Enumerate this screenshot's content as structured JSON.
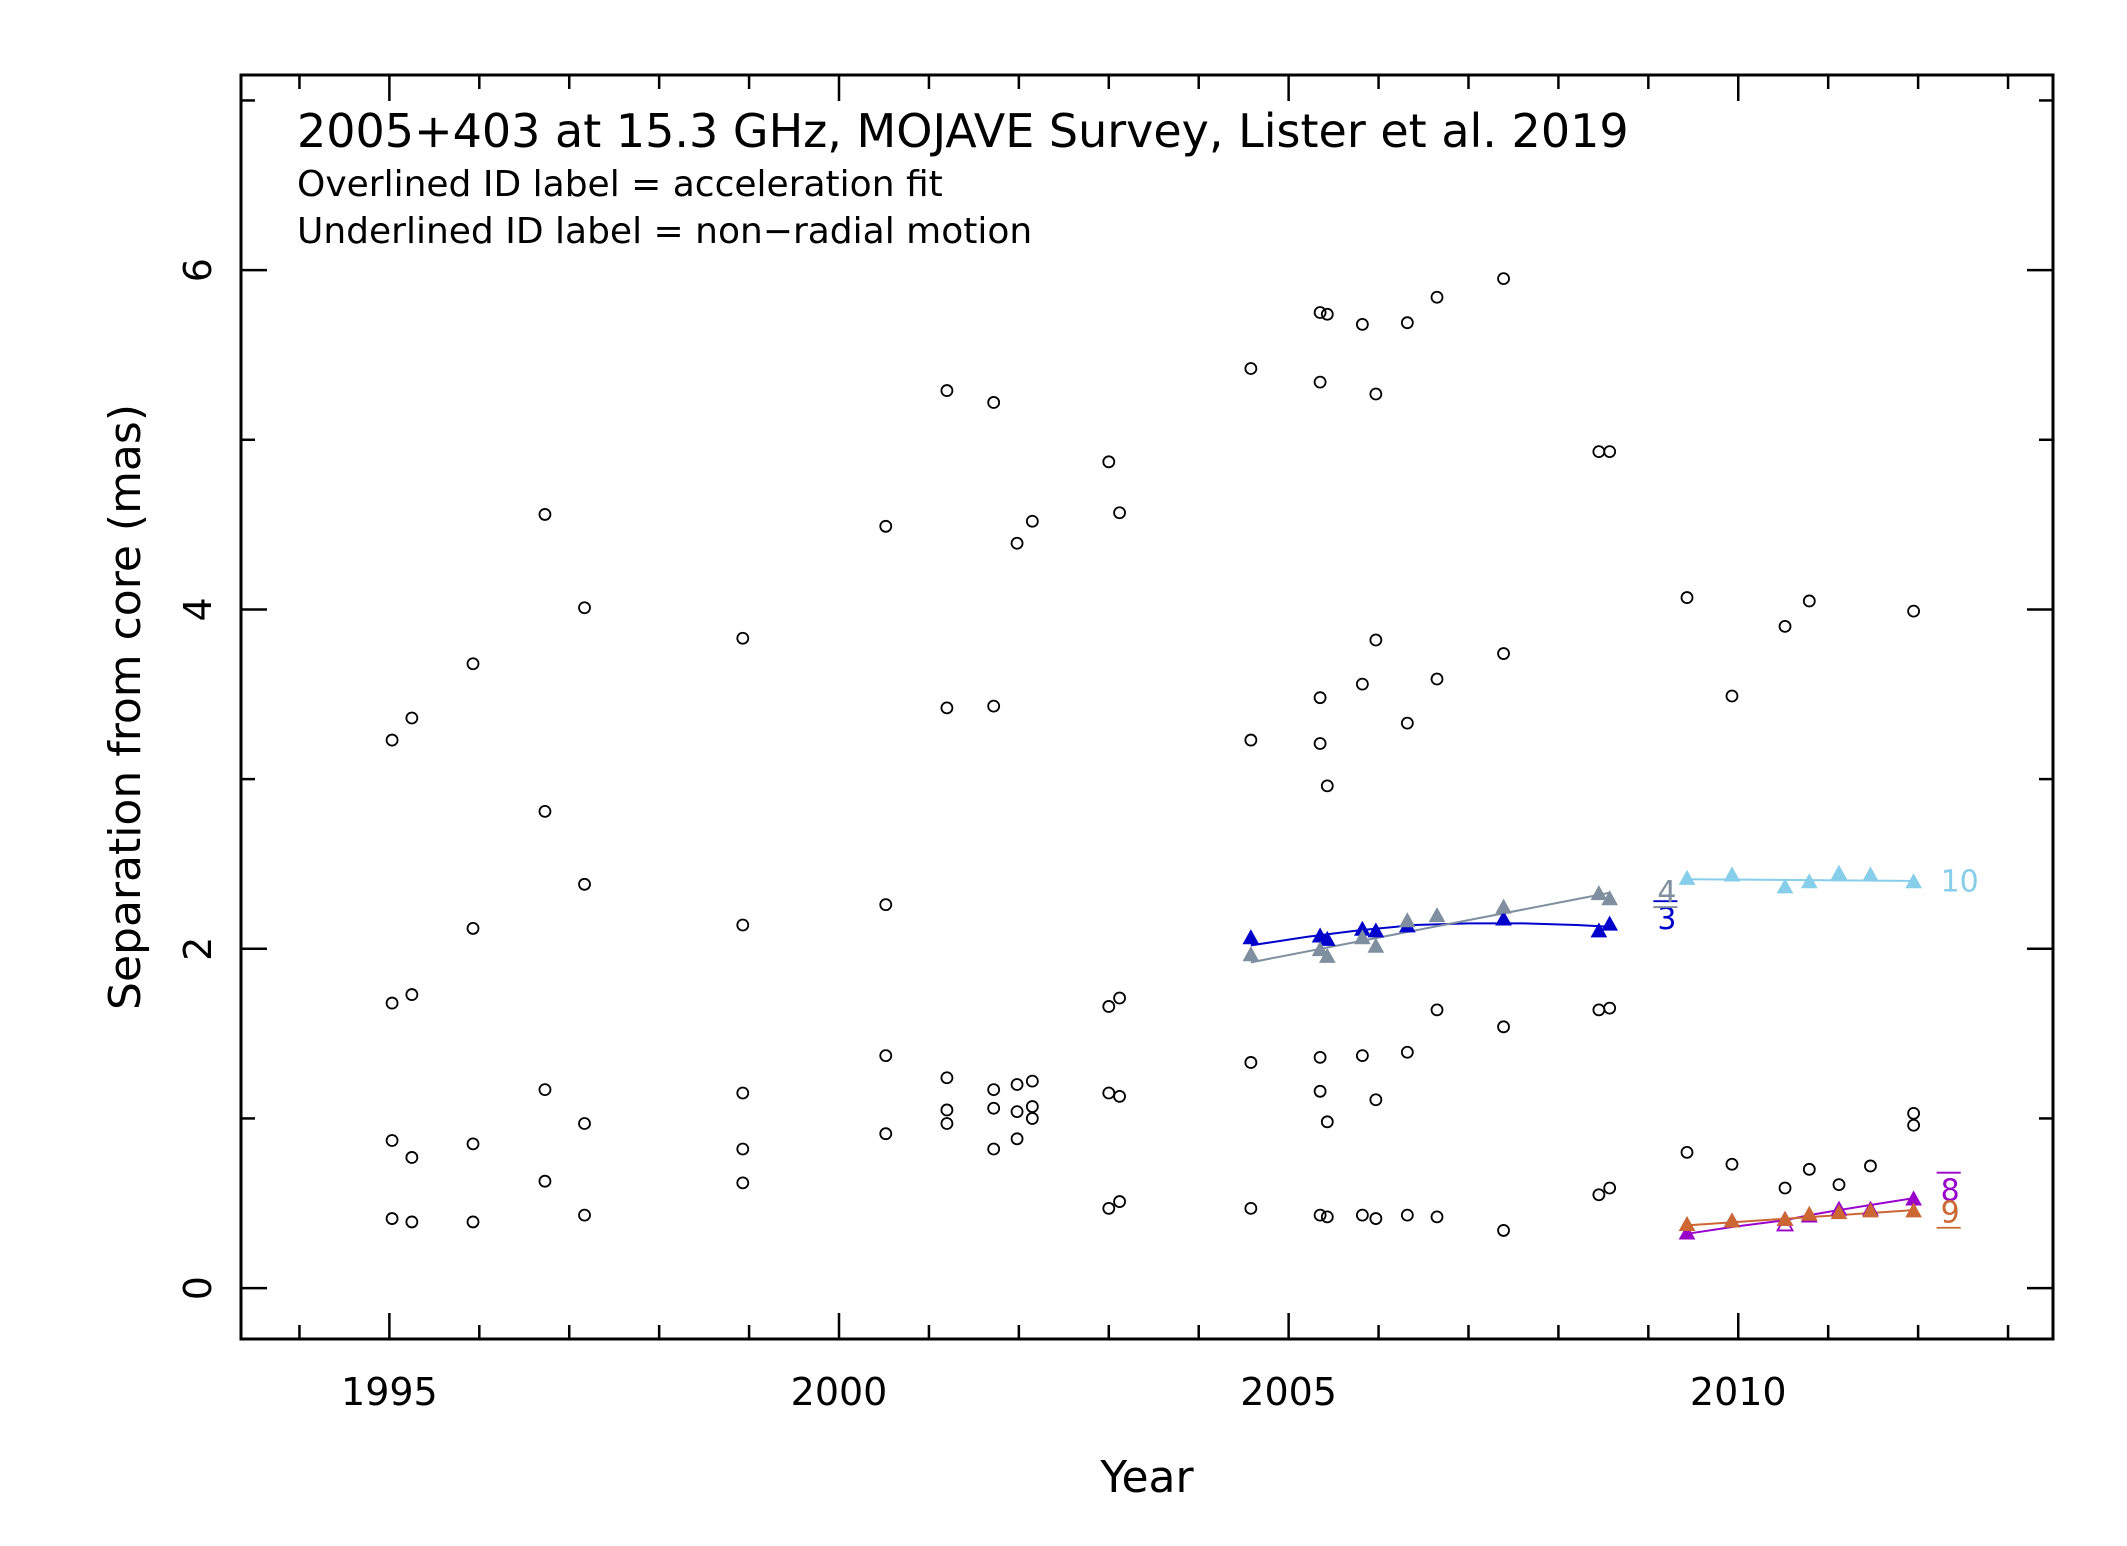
{
  "chart_data": {
    "type": "scatter",
    "title": "2005+403 at 15.3 GHz, MOJAVE Survey, Lister et al. 2019",
    "annotations": [
      "Overlined ID label = acceleration fit",
      "Underlined ID label = non−radial motion"
    ],
    "xlabel": "Year",
    "ylabel": "Separation from core (mas)",
    "xlim": [
      1993.35,
      2013.5
    ],
    "ylim": [
      -0.3,
      7.15
    ],
    "xticks": [
      "1995",
      "2000",
      "2005",
      "2010"
    ],
    "yticks": [
      "0",
      "2",
      "4",
      "6"
    ],
    "unassigned_points": [
      [
        1995.03,
        3.23
      ],
      [
        1995.03,
        1.68
      ],
      [
        1995.03,
        0.87
      ],
      [
        1995.03,
        0.41
      ],
      [
        1995.25,
        3.36
      ],
      [
        1995.25,
        1.73
      ],
      [
        1995.25,
        0.77
      ],
      [
        1995.25,
        0.39
      ],
      [
        1995.93,
        3.68
      ],
      [
        1995.93,
        2.12
      ],
      [
        1995.93,
        0.85
      ],
      [
        1995.93,
        0.39
      ],
      [
        1996.73,
        4.56
      ],
      [
        1996.73,
        2.81
      ],
      [
        1996.73,
        1.17
      ],
      [
        1996.73,
        0.63
      ],
      [
        1997.17,
        4.01
      ],
      [
        1997.17,
        2.38
      ],
      [
        1997.17,
        0.97
      ],
      [
        1997.17,
        0.43
      ],
      [
        1998.93,
        3.83
      ],
      [
        1998.93,
        2.14
      ],
      [
        1998.93,
        1.15
      ],
      [
        1998.93,
        0.82
      ],
      [
        1998.93,
        0.62
      ],
      [
        2000.52,
        4.49
      ],
      [
        2000.52,
        2.26
      ],
      [
        2000.52,
        1.37
      ],
      [
        2000.52,
        0.91
      ],
      [
        2001.2,
        5.29
      ],
      [
        2001.2,
        3.42
      ],
      [
        2001.2,
        1.24
      ],
      [
        2001.2,
        1.05
      ],
      [
        2001.2,
        0.97
      ],
      [
        2001.72,
        5.22
      ],
      [
        2001.72,
        3.43
      ],
      [
        2001.72,
        1.17
      ],
      [
        2001.72,
        1.06
      ],
      [
        2001.72,
        0.82
      ],
      [
        2001.98,
        4.39
      ],
      [
        2001.98,
        1.2
      ],
      [
        2001.98,
        1.04
      ],
      [
        2001.98,
        0.88
      ],
      [
        2002.15,
        4.52
      ],
      [
        2002.15,
        1.22
      ],
      [
        2002.15,
        1.07
      ],
      [
        2002.15,
        1.0
      ],
      [
        2003.0,
        4.87
      ],
      [
        2003.0,
        1.66
      ],
      [
        2003.0,
        1.15
      ],
      [
        2003.0,
        0.47
      ],
      [
        2003.12,
        4.57
      ],
      [
        2003.12,
        1.71
      ],
      [
        2003.12,
        1.13
      ],
      [
        2003.12,
        0.51
      ],
      [
        2004.58,
        5.42
      ],
      [
        2004.58,
        3.23
      ],
      [
        2004.58,
        1.33
      ],
      [
        2004.58,
        0.47
      ],
      [
        2005.35,
        5.75
      ],
      [
        2005.35,
        5.34
      ],
      [
        2005.35,
        3.48
      ],
      [
        2005.35,
        3.21
      ],
      [
        2005.35,
        1.36
      ],
      [
        2005.35,
        1.16
      ],
      [
        2005.35,
        0.43
      ],
      [
        2005.43,
        5.74
      ],
      [
        2005.43,
        2.96
      ],
      [
        2005.43,
        0.98
      ],
      [
        2005.43,
        0.42
      ],
      [
        2005.82,
        5.68
      ],
      [
        2005.82,
        3.56
      ],
      [
        2005.82,
        1.37
      ],
      [
        2005.82,
        0.43
      ],
      [
        2005.97,
        5.27
      ],
      [
        2005.97,
        3.82
      ],
      [
        2005.97,
        1.11
      ],
      [
        2005.97,
        0.41
      ],
      [
        2006.32,
        5.69
      ],
      [
        2006.32,
        3.33
      ],
      [
        2006.32,
        1.39
      ],
      [
        2006.32,
        0.43
      ],
      [
        2006.65,
        5.84
      ],
      [
        2006.65,
        3.59
      ],
      [
        2006.65,
        1.64
      ],
      [
        2006.65,
        0.42
      ],
      [
        2007.39,
        5.95
      ],
      [
        2007.39,
        3.74
      ],
      [
        2007.39,
        1.54
      ],
      [
        2007.39,
        0.34
      ],
      [
        2008.45,
        4.93
      ],
      [
        2008.45,
        1.64
      ],
      [
        2008.45,
        0.55
      ],
      [
        2008.57,
        4.93
      ],
      [
        2008.57,
        1.65
      ],
      [
        2008.57,
        0.59
      ],
      [
        2009.43,
        4.07
      ],
      [
        2009.43,
        0.8
      ],
      [
        2009.93,
        3.49
      ],
      [
        2009.93,
        0.73
      ],
      [
        2010.52,
        3.9
      ],
      [
        2010.52,
        0.59
      ],
      [
        2010.79,
        4.05
      ],
      [
        2010.79,
        0.7
      ],
      [
        2011.12,
        0.61
      ],
      [
        2011.47,
        0.72
      ],
      [
        2011.95,
        3.99
      ],
      [
        2011.95,
        1.03
      ],
      [
        2011.95,
        0.96
      ]
    ],
    "series": [
      {
        "name": "3",
        "color": "#0000cc",
        "label_style": "overline",
        "x": [
          2004.58,
          2005.35,
          2005.43,
          2005.82,
          2005.97,
          2006.32,
          2007.39,
          2008.45,
          2008.57
        ],
        "y": [
          2.06,
          2.07,
          2.05,
          2.11,
          2.1,
          2.13,
          2.17,
          2.1,
          2.14
        ],
        "fit": {
          "x": [
            2004.58,
            2005.2,
            2005.8,
            2006.4,
            2007.0,
            2007.6,
            2008.2,
            2008.57
          ],
          "y": [
            2.02,
            2.07,
            2.11,
            2.14,
            2.15,
            2.15,
            2.14,
            2.13
          ]
        }
      },
      {
        "name": "4",
        "color": "#7f8fa0",
        "label_style": "underline",
        "x": [
          2004.58,
          2005.35,
          2005.43,
          2005.82,
          2005.97,
          2006.32,
          2006.65,
          2007.39,
          2008.45,
          2008.57
        ],
        "y": [
          1.96,
          1.99,
          1.95,
          2.06,
          2.01,
          2.16,
          2.19,
          2.24,
          2.32,
          2.29
        ],
        "fit": {
          "x": [
            2004.58,
            2008.57
          ],
          "y": [
            1.92,
            2.33
          ]
        }
      },
      {
        "name": "8",
        "color": "#9900cc",
        "label_style": "overline",
        "x": [
          2009.43,
          2009.93,
          2010.52,
          2010.79,
          2011.12,
          2011.47,
          2011.95
        ],
        "y": [
          0.32,
          0.39,
          0.4,
          0.42,
          0.46,
          0.46,
          0.52
        ],
        "open_markers_x": [
          2010.52
        ],
        "open_markers_y": [
          0.37
        ],
        "fit": {
          "x": [
            2009.43,
            2009.93,
            2010.52,
            2010.79,
            2011.12,
            2011.47,
            2011.95
          ],
          "y": [
            0.32,
            0.36,
            0.4,
            0.43,
            0.46,
            0.49,
            0.53
          ]
        }
      },
      {
        "name": "9",
        "color": "#cc6633",
        "label_style": "underline",
        "x": [
          2009.43,
          2009.93,
          2010.52,
          2010.79,
          2011.12,
          2011.47,
          2011.95
        ],
        "y": [
          0.37,
          0.39,
          0.4,
          0.43,
          0.44,
          0.45,
          0.45
        ],
        "fit": {
          "x": [
            2009.43,
            2011.95
          ],
          "y": [
            0.37,
            0.46
          ]
        }
      },
      {
        "name": "10",
        "color": "#87ceeb",
        "label_style": "plain",
        "x": [
          2009.43,
          2009.93,
          2010.52,
          2010.79,
          2011.12,
          2011.47,
          2011.95
        ],
        "y": [
          2.41,
          2.43,
          2.36,
          2.39,
          2.44,
          2.43,
          2.39
        ],
        "fit": {
          "x": [
            2009.43,
            2011.95
          ],
          "y": [
            2.41,
            2.4
          ]
        }
      }
    ],
    "grid": false,
    "legend": "none"
  },
  "colors": {
    "component_3": "#0000cc",
    "component_4": "#7f8fa0",
    "component_8": "#9900cc",
    "component_9": "#cc6633",
    "component_10": "#87ceeb",
    "unassigned": "#000000"
  }
}
